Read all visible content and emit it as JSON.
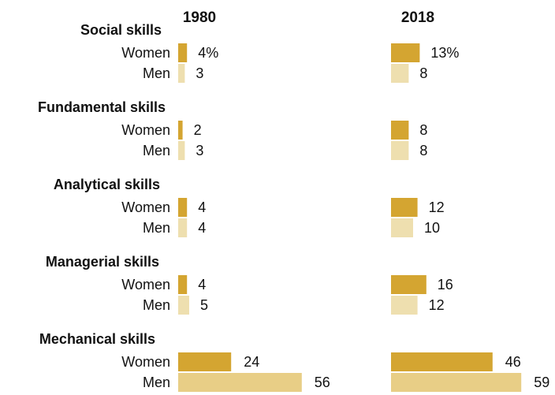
{
  "chart_data": {
    "type": "bar",
    "orientation": "horizontal",
    "panels": [
      "1980",
      "2018"
    ],
    "row_labels": [
      "Women",
      "Men"
    ],
    "value_suffix_first_row": "%",
    "colors": {
      "women": "#D4A531",
      "men": "#EEDFAF",
      "men_mechanical": "#E8CE86"
    },
    "groups": [
      {
        "name": "Social skills",
        "values": {
          "1980": {
            "Women": 4,
            "Men": 3
          },
          "2018": {
            "Women": 13,
            "Men": 8
          }
        }
      },
      {
        "name": "Fundamental skills",
        "values": {
          "1980": {
            "Women": 2,
            "Men": 3
          },
          "2018": {
            "Women": 8,
            "Men": 8
          }
        }
      },
      {
        "name": "Analytical skills",
        "values": {
          "1980": {
            "Women": 4,
            "Men": 4
          },
          "2018": {
            "Women": 12,
            "Men": 10
          }
        }
      },
      {
        "name": "Managerial skills",
        "values": {
          "1980": {
            "Women": 4,
            "Men": 5
          },
          "2018": {
            "Women": 16,
            "Men": 12
          }
        }
      },
      {
        "name": "Mechanical skills",
        "values": {
          "1980": {
            "Women": 24,
            "Men": 56
          },
          "2018": {
            "Women": 46,
            "Men": 59
          }
        }
      }
    ]
  }
}
